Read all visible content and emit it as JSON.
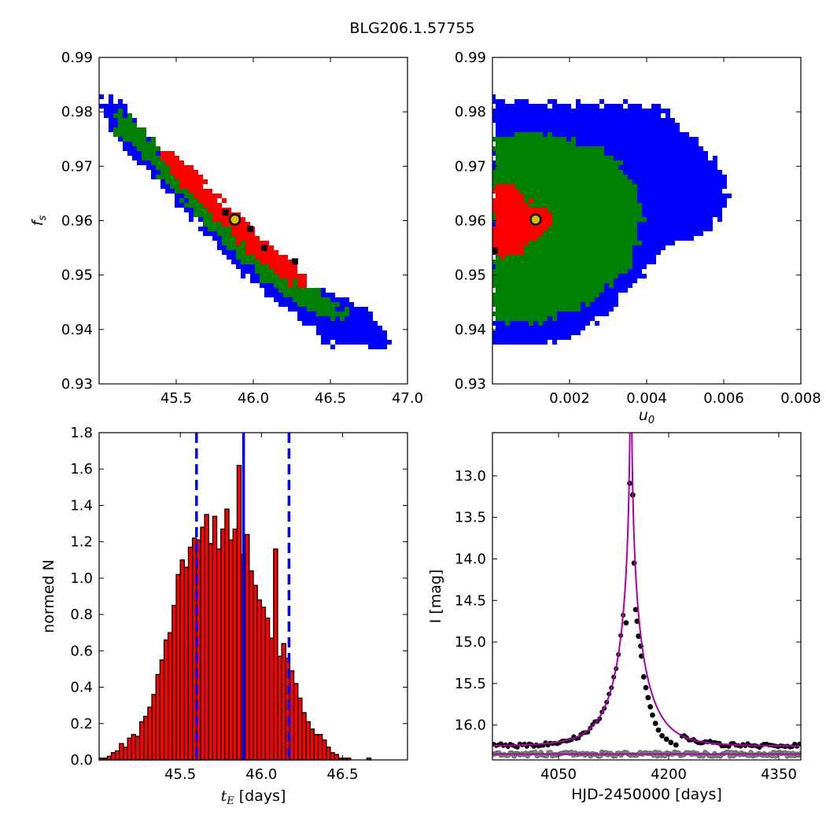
{
  "figure_title": "BLG206.1.57755",
  "chart_data": [
    {
      "id": "tE_vs_fs",
      "type": "heatmap",
      "xlabel": "",
      "ylabel": "f_s",
      "xlim": [
        45.0,
        47.0
      ],
      "ylim": [
        0.93,
        0.99
      ],
      "xticks": [
        45.5,
        46.0,
        46.5,
        47.0
      ],
      "xtick_labels": [
        "45.5",
        "46.0",
        "46.5",
        "47.0"
      ],
      "yticks": [
        0.93,
        0.94,
        0.95,
        0.96,
        0.97,
        0.98,
        0.99
      ],
      "ytick_labels": [
        "0.93",
        "0.94",
        "0.95",
        "0.96",
        "0.97",
        "0.98",
        "0.99"
      ],
      "regions": [
        {
          "level": "outer",
          "color": "#0000ff",
          "polygon": [
            [
              45.03,
              0.9825
            ],
            [
              45.12,
              0.982
            ],
            [
              45.6,
              0.9655
            ],
            [
              46.2,
              0.9505
            ],
            [
              46.75,
              0.9435
            ],
            [
              46.9,
              0.938
            ],
            [
              46.85,
              0.9365
            ],
            [
              46.5,
              0.937
            ],
            [
              45.9,
              0.951
            ],
            [
              45.3,
              0.9695
            ],
            [
              45.06,
              0.976
            ]
          ]
        },
        {
          "level": "middle",
          "color": "#008000",
          "polygon": [
            [
              45.1,
              0.9805
            ],
            [
              45.2,
              0.9795
            ],
            [
              45.6,
              0.9655
            ],
            [
              46.2,
              0.951
            ],
            [
              46.6,
              0.9435
            ],
            [
              46.62,
              0.9415
            ],
            [
              46.4,
              0.9425
            ],
            [
              45.9,
              0.953
            ],
            [
              45.4,
              0.9685
            ],
            [
              45.12,
              0.976
            ]
          ]
        },
        {
          "level": "inner",
          "color": "#ff0000",
          "polygon": [
            [
              45.38,
              0.973
            ],
            [
              45.5,
              0.9725
            ],
            [
              45.8,
              0.9635
            ],
            [
              46.2,
              0.9535
            ],
            [
              46.38,
              0.9485
            ],
            [
              46.3,
              0.9475
            ],
            [
              46.0,
              0.9535
            ],
            [
              45.7,
              0.9615
            ],
            [
              45.4,
              0.971
            ]
          ]
        }
      ],
      "black_cells": [
        [
          45.82,
          0.9615
        ],
        [
          45.98,
          0.9585
        ],
        [
          46.07,
          0.955
        ],
        [
          46.27,
          0.9525
        ]
      ],
      "best_fit": {
        "x": 45.88,
        "y": 0.9602,
        "fill": "#d4c000"
      }
    },
    {
      "id": "u0_vs_fs",
      "type": "heatmap",
      "xlabel": "u_0",
      "ylabel": "",
      "xlim": [
        0.0,
        0.008
      ],
      "ylim": [
        0.93,
        0.99
      ],
      "xticks": [
        0.002,
        0.004,
        0.006,
        0.008
      ],
      "xtick_labels": [
        "0.002",
        "0.004",
        "0.006",
        "0.008"
      ],
      "yticks": [
        0.93,
        0.94,
        0.95,
        0.96,
        0.97,
        0.98,
        0.99
      ],
      "ytick_labels": [
        "0.93",
        "0.94",
        "0.95",
        "0.96",
        "0.97",
        "0.98",
        "0.99"
      ],
      "regions": [
        {
          "level": "outer",
          "color": "#0000ff",
          "polygon": [
            [
              0.0,
              0.9825
            ],
            [
              0.0015,
              0.9815
            ],
            [
              0.003,
              0.9815
            ],
            [
              0.0043,
              0.981
            ],
            [
              0.0052,
              0.975
            ],
            [
              0.0059,
              0.9705
            ],
            [
              0.0061,
              0.964
            ],
            [
              0.0057,
              0.958
            ],
            [
              0.0045,
              0.955
            ],
            [
              0.0036,
              0.948
            ],
            [
              0.003,
              0.943
            ],
            [
              0.0022,
              0.9385
            ],
            [
              0.0012,
              0.937
            ],
            [
              0.0,
              0.937
            ]
          ]
        },
        {
          "level": "middle",
          "color": "#008000",
          "polygon": [
            [
              0.0,
              0.975
            ],
            [
              0.001,
              0.976
            ],
            [
              0.0025,
              0.974
            ],
            [
              0.0032,
              0.9715
            ],
            [
              0.0037,
              0.966
            ],
            [
              0.0039,
              0.96
            ],
            [
              0.0037,
              0.953
            ],
            [
              0.003,
              0.9475
            ],
            [
              0.0022,
              0.9435
            ],
            [
              0.0012,
              0.941
            ],
            [
              0.0,
              0.9415
            ]
          ]
        },
        {
          "level": "inner",
          "color": "#ff0000",
          "polygon": [
            [
              0.0,
              0.9665
            ],
            [
              0.0004,
              0.967
            ],
            [
              0.0008,
              0.9645
            ],
            [
              0.0012,
              0.9625
            ],
            [
              0.0016,
              0.9615
            ],
            [
              0.0014,
              0.958
            ],
            [
              0.0009,
              0.9555
            ],
            [
              0.0006,
              0.9535
            ],
            [
              0.0002,
              0.953
            ],
            [
              0.0,
              0.9535
            ]
          ]
        }
      ],
      "black_cells": [
        [
          5e-05,
          0.9545
        ]
      ],
      "best_fit": {
        "x": 0.00112,
        "y": 0.9602,
        "fill": "#d4c000"
      }
    },
    {
      "id": "tE_histogram",
      "type": "bar",
      "xlabel": "t_E",
      "xlabel_suffix": " [days]",
      "ylabel": "normed N",
      "xlim": [
        45.0,
        46.9
      ],
      "ylim": [
        0.0,
        1.8
      ],
      "xticks": [
        45.5,
        46.0,
        46.5
      ],
      "xtick_labels": [
        "45.5",
        "46.0",
        "46.5"
      ],
      "yticks": [
        0.0,
        0.2,
        0.4,
        0.6,
        0.8,
        1.0,
        1.2,
        1.4,
        1.6,
        1.8
      ],
      "ytick_labels": [
        "0.0",
        "0.2",
        "0.4",
        "0.6",
        "0.8",
        "1.0",
        "1.2",
        "1.4",
        "1.6",
        "1.8"
      ],
      "bin_start": 45.0,
      "bin_width": 0.025,
      "values": [
        0.01,
        0.01,
        0.02,
        0.04,
        0.05,
        0.09,
        0.07,
        0.12,
        0.14,
        0.13,
        0.21,
        0.24,
        0.29,
        0.36,
        0.47,
        0.55,
        0.66,
        0.7,
        0.85,
        1.02,
        1.1,
        1.06,
        1.17,
        1.22,
        1.21,
        1.28,
        1.35,
        1.19,
        1.34,
        1.16,
        1.27,
        1.38,
        1.21,
        1.27,
        1.62,
        1.13,
        1.24,
        1.04,
        0.96,
        0.88,
        0.84,
        0.78,
        0.67,
        1.16,
        0.57,
        0.64,
        0.56,
        0.49,
        0.42,
        0.34,
        0.26,
        0.21,
        0.17,
        0.14,
        0.14,
        0.11,
        0.07,
        0.04,
        0.03,
        0.01,
        0.01,
        0.01,
        0.0,
        0.0,
        0.0,
        0.0,
        0.01
      ],
      "bar_color": "#ff0000",
      "vlines": [
        {
          "x": 45.6,
          "style": "dashed",
          "color": "#0000ff"
        },
        {
          "x": 45.89,
          "style": "solid",
          "color": "#0000ff"
        },
        {
          "x": 46.17,
          "style": "dashed",
          "color": "#0000ff"
        }
      ]
    },
    {
      "id": "light_curve",
      "type": "scatter",
      "xlabel": "HJD-2450000 [days]",
      "ylabel": "I [mag]",
      "xlim": [
        3960,
        4380
      ],
      "ylim": [
        16.42,
        12.48
      ],
      "xticks": [
        4050,
        4200,
        4350
      ],
      "xtick_labels": [
        "4050",
        "4200",
        "4350"
      ],
      "yticks": [
        13.0,
        13.5,
        14.0,
        14.5,
        15.0,
        15.5,
        16.0
      ],
      "ytick_labels": [
        "13.0",
        "13.5",
        "14.0",
        "14.5",
        "15.0",
        "15.5",
        "16.0"
      ],
      "series": [
        {
          "marker_color": "#000000",
          "points": [
            [
              4142,
              14.77
            ],
            [
              4147,
              13.09
            ],
            [
              4151,
              13.23
            ],
            [
              4153,
              14.05
            ],
            [
              4155,
              14.61
            ],
            [
              4157,
              14.75
            ],
            [
              4159,
              14.93
            ],
            [
              4162,
              15.05
            ],
            [
              4163,
              15.17
            ],
            [
              4166,
              15.42
            ],
            [
              4169,
              15.55
            ],
            [
              4172,
              15.67
            ],
            [
              4175,
              15.78
            ],
            [
              4178,
              15.88
            ],
            [
              4182,
              15.98
            ],
            [
              4186,
              16.06
            ],
            [
              4191,
              16.13
            ],
            [
              4197,
              16.17
            ],
            [
              4203,
              16.21
            ],
            [
              4210,
              16.24
            ]
          ]
        },
        {
          "marker_color": "#808080",
          "points": []
        }
      ],
      "model": {
        "color": "#aa00aa",
        "t0": 4148.5,
        "tE": 45.9,
        "u0": 0.0011,
        "fs": 0.96,
        "I_base": 16.255,
        "I_faint": 16.35
      }
    }
  ]
}
